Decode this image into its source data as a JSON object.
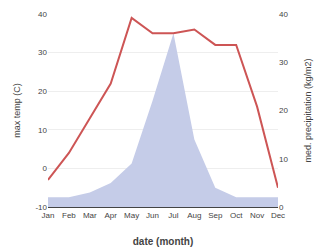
{
  "chart_data": {
    "type": "line",
    "categories": [
      "Jan",
      "Feb",
      "Mar",
      "Apr",
      "May",
      "Jun",
      "Jul",
      "Aug",
      "Sep",
      "Oct",
      "Nov",
      "Dec"
    ],
    "series": [
      {
        "type": "area",
        "axis": "y2",
        "color": "#c5cce8",
        "values": [
          2,
          2,
          3,
          5,
          9,
          22,
          36,
          14,
          4,
          2,
          2,
          2
        ]
      },
      {
        "type": "line",
        "color": "#cd5555",
        "values": [
          -3,
          4,
          13,
          22,
          39,
          35,
          35,
          36,
          32,
          32,
          16,
          -5
        ]
      }
    ],
    "xlabel": "date (month)",
    "ylabel": "max temp (C)",
    "y2label": "med. precipitation (kg/m2)",
    "ylim": [
      -10,
      40
    ],
    "yticks": [
      -10,
      0,
      10,
      20,
      30,
      40
    ],
    "y2lim": [
      0,
      40
    ],
    "y2ticks": [
      0,
      10,
      20,
      30,
      40
    ],
    "grid": true
  }
}
